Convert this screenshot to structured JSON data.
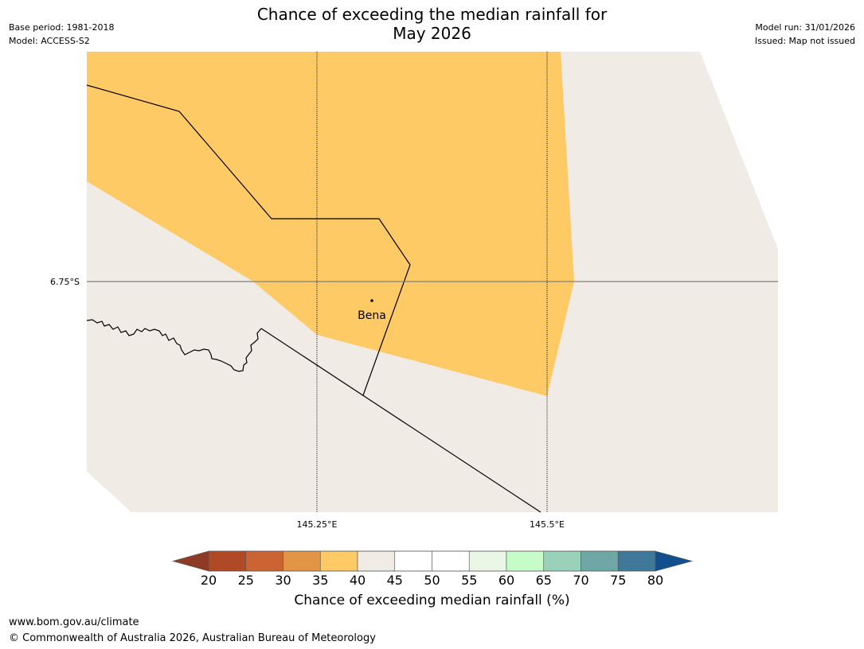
{
  "title": {
    "line1": "Chance of exceeding the median rainfall for",
    "line2": "May 2026"
  },
  "meta_left": {
    "base_period": "Base period: 1981-2018",
    "model": "Model: ACCESS-S2"
  },
  "meta_right": {
    "model_run": "Model run: 31/01/2026",
    "issued": "Issued: Map not issued"
  },
  "map": {
    "lat_label": "6.75°S",
    "lon_labels": [
      "145.25°E",
      "145.5°E"
    ],
    "place": "Bena",
    "colors": {
      "land_neutral": "#f0ebe5",
      "category_35_40": "#fdca66"
    }
  },
  "colorbar": {
    "ticks": [
      "20",
      "25",
      "30",
      "35",
      "40",
      "45",
      "50",
      "55",
      "60",
      "65",
      "70",
      "75",
      "80"
    ],
    "label": "Chance of exceeding median rainfall (%)",
    "under_color": "#8f3a24",
    "over_color": "#11508c",
    "colors": [
      "#b04a26",
      "#cc6333",
      "#e29645",
      "#fdca66",
      "#f0ebe5",
      "#ffffff",
      "#ffffff",
      "#eaf7e6",
      "#c6fcc8",
      "#9ad1b9",
      "#6ea7a6",
      "#3f7899"
    ]
  },
  "footer": {
    "url": "www.bom.gov.au/climate",
    "copyright": "© Commonwealth of Australia 2026, Australian Bureau of Meteorology"
  }
}
